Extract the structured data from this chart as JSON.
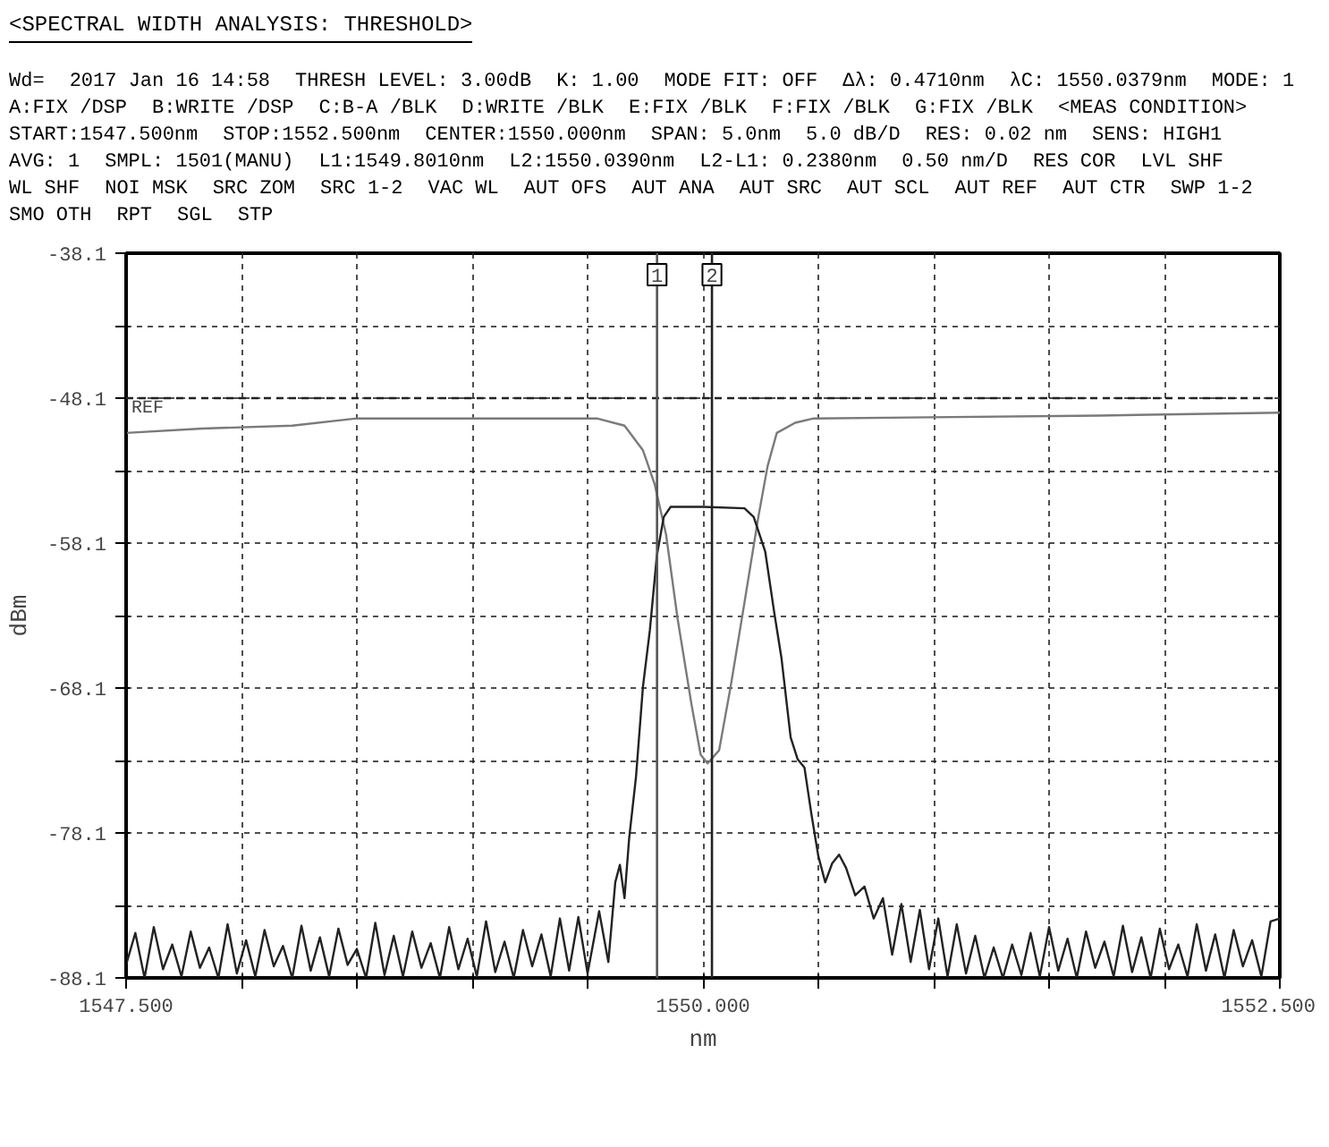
{
  "chart_data": {
    "type": "line",
    "title": "<SPECTRAL WIDTH ANALYSIS: THRESHOLD>",
    "xlabel": "nm",
    "ylabel": "dBm",
    "xlim": [
      1547.5,
      1552.5
    ],
    "xticks": [
      {
        "value": 1547.5,
        "label": "1547.500"
      },
      {
        "value": 1548.0,
        "label": null
      },
      {
        "value": 1548.5,
        "label": null
      },
      {
        "value": 1549.0,
        "label": null
      },
      {
        "value": 1549.5,
        "label": null
      },
      {
        "value": 1550.0,
        "label": "1550.000"
      },
      {
        "value": 1550.5,
        "label": null
      },
      {
        "value": 1551.0,
        "label": null
      },
      {
        "value": 1551.5,
        "label": null
      },
      {
        "value": 1552.0,
        "label": null
      },
      {
        "value": 1552.5,
        "label": "1552.500"
      }
    ],
    "ylim": [
      -88.1,
      -38.1
    ],
    "yticks": [
      -88.1,
      {
        "value": -83.1,
        "label": null
      },
      -78.1,
      {
        "value": -73.1,
        "label": null
      },
      -68.1,
      {
        "value": -63.1,
        "label": null
      },
      -58.1,
      {
        "value": -53.1,
        "label": null
      },
      -48.1,
      {
        "value": -43.1,
        "label": null
      },
      -38.1
    ],
    "grid": true,
    "line_style": "solid",
    "marker": "none",
    "series": [
      {
        "color": "#7a7a7a",
        "x": [
          1547.5,
          1547.83,
          1548.22,
          1548.5,
          1549.54,
          1549.66,
          1549.74,
          1549.79,
          1549.84,
          1549.89,
          1549.95,
          1549.99,
          1550.02,
          1550.07,
          1550.12,
          1550.18,
          1550.24,
          1550.28,
          1550.32,
          1550.4,
          1550.48,
          1551.72,
          1552.5
        ],
        "values": [
          -50.5,
          -50.2,
          -50.0,
          -49.5,
          -49.5,
          -50.0,
          -51.7,
          -54.0,
          -57.5,
          -63.3,
          -69.2,
          -72.7,
          -73.3,
          -72.4,
          -68.0,
          -62.2,
          -56.3,
          -52.8,
          -50.5,
          -49.8,
          -49.5,
          -49.3,
          -49.1
        ]
      },
      {
        "color": "#222222",
        "x": [
          1547.5,
          1547.54,
          1547.58,
          1547.62,
          1547.66,
          1547.7,
          1547.74,
          1547.78,
          1547.82,
          1547.86,
          1547.9,
          1547.94,
          1547.98,
          1548.02,
          1548.06,
          1548.1,
          1548.14,
          1548.18,
          1548.22,
          1548.26,
          1548.3,
          1548.34,
          1548.38,
          1548.42,
          1548.46,
          1548.5,
          1548.54,
          1548.58,
          1548.62,
          1548.66,
          1548.7,
          1548.74,
          1548.78,
          1548.82,
          1548.86,
          1548.9,
          1548.94,
          1548.98,
          1549.02,
          1549.06,
          1549.1,
          1549.14,
          1549.18,
          1549.22,
          1549.26,
          1549.3,
          1549.34,
          1549.38,
          1549.42,
          1549.46,
          1549.5,
          1549.55,
          1549.59,
          1549.62,
          1549.64,
          1549.66,
          1549.68,
          1549.71,
          1549.74,
          1549.77,
          1549.8,
          1549.83,
          1549.86,
          1550.0,
          1550.18,
          1550.22,
          1550.27,
          1550.31,
          1550.34,
          1550.38,
          1550.41,
          1550.44,
          1550.47,
          1550.5,
          1550.53,
          1550.56,
          1550.59,
          1550.62,
          1550.66,
          1550.7,
          1550.74,
          1550.78,
          1550.82,
          1550.86,
          1550.9,
          1550.94,
          1550.98,
          1551.02,
          1551.06,
          1551.1,
          1551.14,
          1551.18,
          1551.22,
          1551.26,
          1551.3,
          1551.34,
          1551.38,
          1551.42,
          1551.46,
          1551.5,
          1551.54,
          1551.58,
          1551.62,
          1551.66,
          1551.7,
          1551.74,
          1551.78,
          1551.82,
          1551.86,
          1551.9,
          1551.94,
          1551.98,
          1552.02,
          1552.06,
          1552.1,
          1552.14,
          1552.18,
          1552.22,
          1552.26,
          1552.3,
          1552.34,
          1552.38,
          1552.42,
          1552.46,
          1552.5
        ],
        "values": [
          -87.2,
          -85.0,
          -88.1,
          -84.6,
          -87.5,
          -85.8,
          -88.0,
          -84.9,
          -87.4,
          -86.0,
          -88.1,
          -84.4,
          -87.8,
          -85.5,
          -88.0,
          -84.8,
          -87.3,
          -85.9,
          -88.1,
          -84.5,
          -87.6,
          -85.3,
          -88.0,
          -84.7,
          -87.2,
          -86.1,
          -88.1,
          -84.3,
          -87.9,
          -85.2,
          -88.0,
          -84.9,
          -87.4,
          -85.7,
          -88.1,
          -84.6,
          -87.5,
          -85.4,
          -88.0,
          -84.2,
          -87.7,
          -85.6,
          -88.1,
          -84.8,
          -87.3,
          -85.1,
          -88.0,
          -84.0,
          -87.6,
          -83.9,
          -87.8,
          -83.5,
          -87.0,
          -81.5,
          -80.3,
          -82.6,
          -78.5,
          -74.2,
          -68.0,
          -64.1,
          -59.0,
          -56.3,
          -55.6,
          -55.6,
          -55.7,
          -56.3,
          -58.7,
          -63.0,
          -66.0,
          -71.5,
          -73.0,
          -73.6,
          -76.8,
          -79.7,
          -81.5,
          -80.2,
          -79.6,
          -80.5,
          -82.4,
          -81.8,
          -84.0,
          -82.6,
          -86.5,
          -83.0,
          -87.0,
          -83.4,
          -87.5,
          -84.0,
          -88.0,
          -84.4,
          -87.8,
          -85.2,
          -88.1,
          -86.0,
          -88.1,
          -85.8,
          -87.9,
          -85.0,
          -88.0,
          -84.6,
          -87.6,
          -85.4,
          -88.1,
          -84.9,
          -87.4,
          -85.6,
          -88.0,
          -84.5,
          -87.7,
          -85.3,
          -88.1,
          -84.7,
          -87.5,
          -85.8,
          -88.0,
          -84.4,
          -87.6,
          -85.1,
          -88.1,
          -84.8,
          -87.3,
          -85.5,
          -88.0,
          -84.2,
          -84.0
        ]
      }
    ],
    "ref_lines": [
      {
        "axis": "y",
        "value": -48.1,
        "label": "REF",
        "color": "#222222",
        "line_style": "dashed"
      },
      {
        "axis": "x",
        "value": 1549.801,
        "color": "#555555",
        "line_style": "solid"
      },
      {
        "axis": "x",
        "value": 1550.039,
        "color": "#222222",
        "line_style": "solid"
      }
    ],
    "annotations": [
      {
        "text": "1",
        "x": 1549.801,
        "y": -38.1
      },
      {
        "text": "2",
        "x": 1550.039,
        "y": -38.1
      },
      "Wd=",
      "2017 Jan 16 14:58",
      "THRESH LEVEL: 3.00dB",
      "K: 1.00",
      "MODE FIT: OFF",
      "Δλ: 0.4710nm",
      "λC: 1550.0379nm",
      "MODE: 1",
      "A:FIX /DSP",
      "B:WRITE /DSP",
      "C:B-A /BLK",
      "D:WRITE /BLK",
      "E:FIX /BLK",
      "F:FIX /BLK",
      "G:FIX /BLK",
      "<MEAS CONDITION>",
      "START:1547.500nm",
      "STOP:1552.500nm",
      "CENTER:1550.000nm",
      "SPAN: 5.0nm",
      "5.0 dB/D",
      "RES: 0.02 nm",
      "SENS: HIGH1",
      "AVG: 1",
      "SMPL: 1501(MANU)",
      "L1:1549.8010nm",
      "L2:1550.0390nm",
      "L2-L1: 0.2380nm",
      "0.50 nm/D",
      "RES COR",
      "LVL SHF",
      "WL SHF",
      "NOI MSK",
      "SRC ZOM",
      "SRC 1-2",
      "VAC WL",
      "AUT OFS",
      "AUT ANA",
      "AUT SRC",
      "AUT SCL",
      "AUT REF",
      "AUT CTR",
      "SWP 1-2",
      "SMO OTH",
      "RPT",
      "SGL",
      "STP"
    ]
  }
}
